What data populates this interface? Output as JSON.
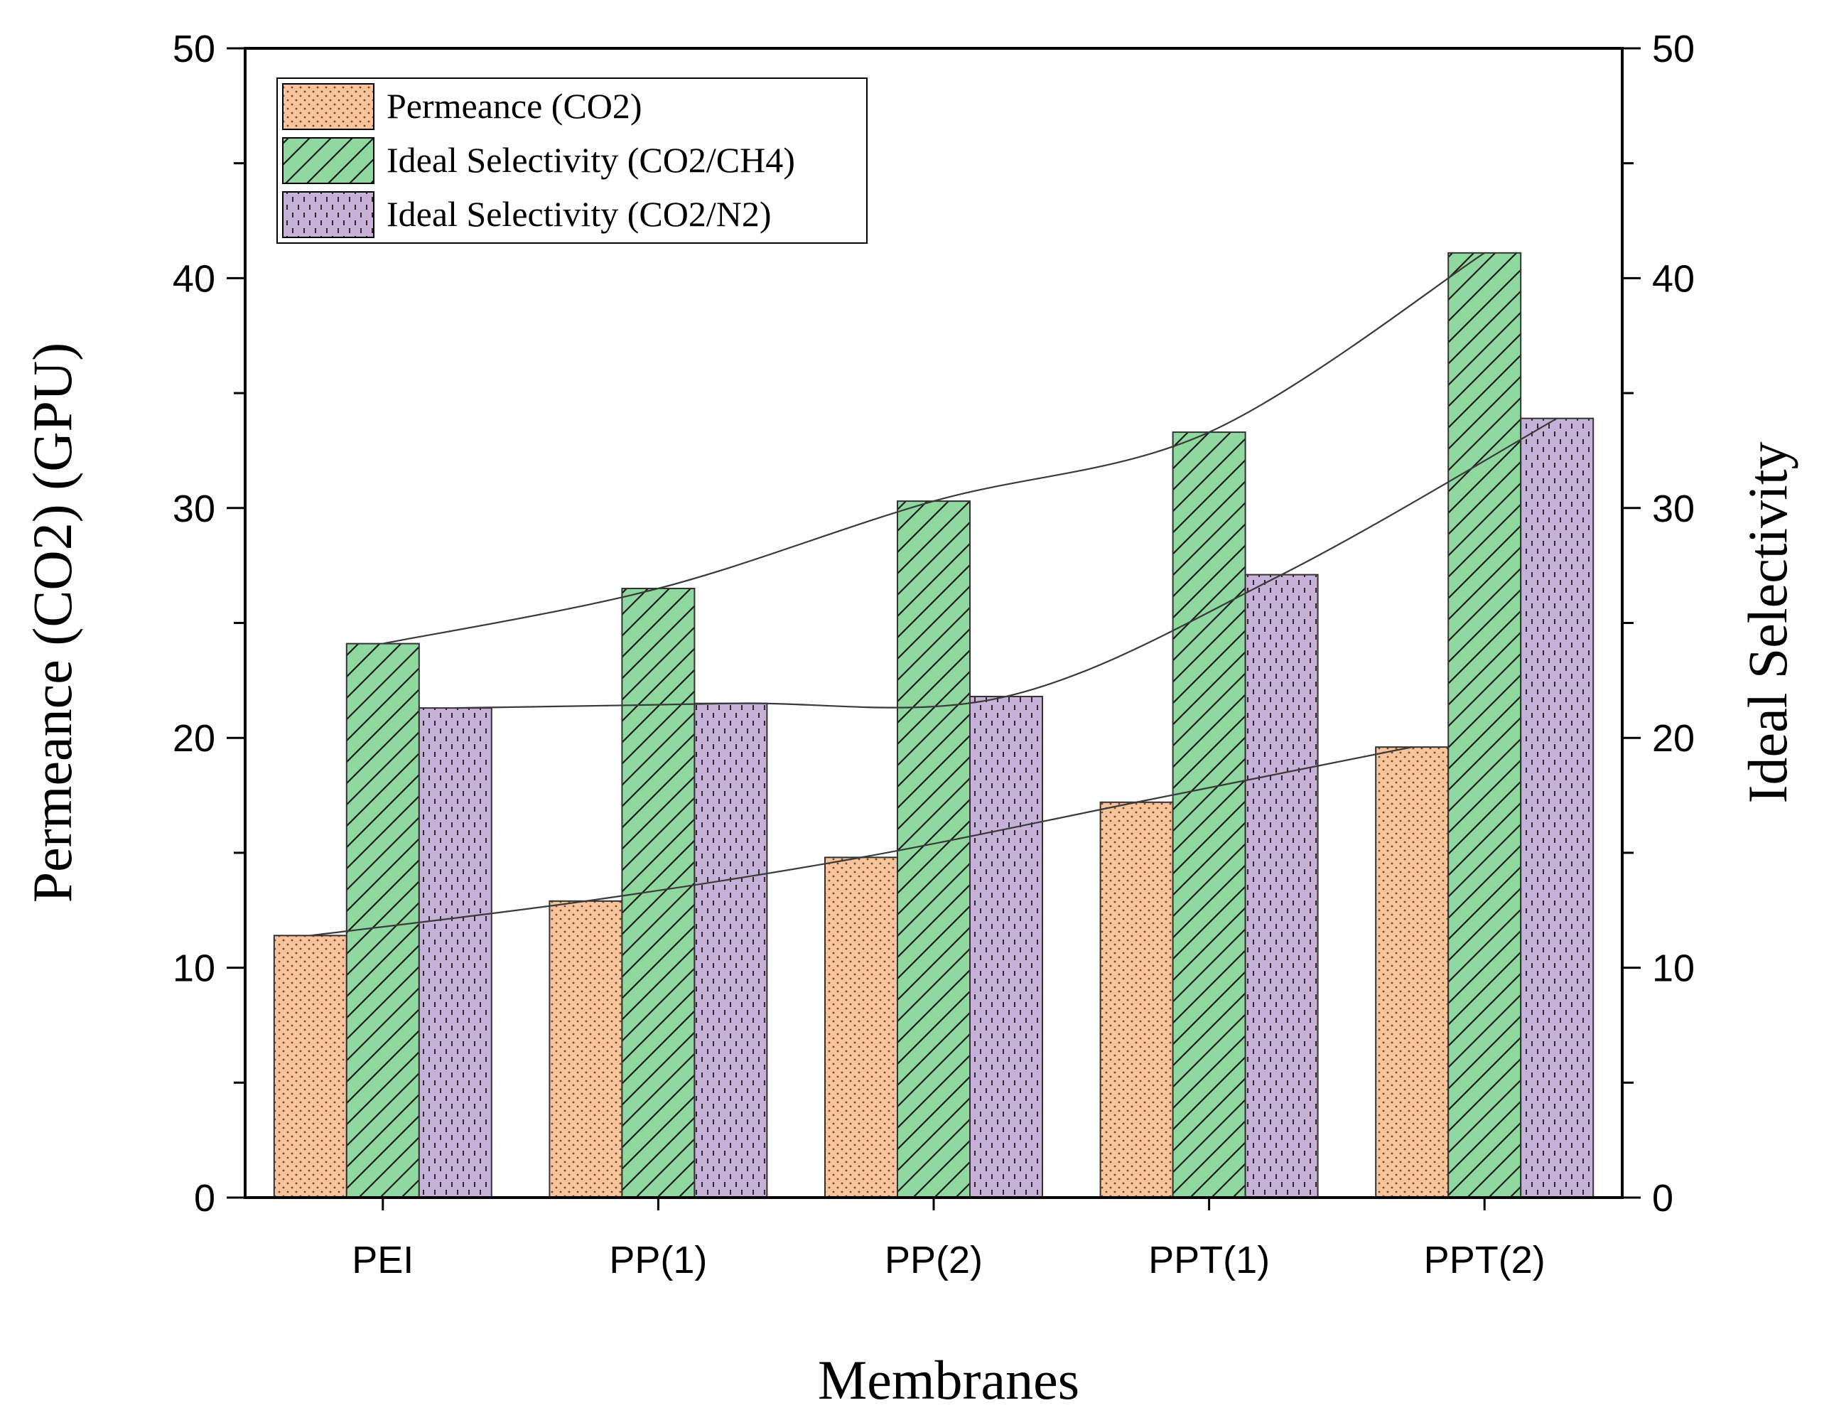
{
  "chart_data": {
    "type": "bar",
    "categories": [
      "PEI",
      "PP(1)",
      "PP(2)",
      "PPT(1)",
      "PPT(2)"
    ],
    "series": [
      {
        "name": "Permeance (CO2)",
        "axis": "left",
        "values": [
          11.4,
          12.9,
          14.8,
          17.2,
          19.6
        ],
        "color": "#f9c49c",
        "pattern": "dots"
      },
      {
        "name": "Ideal Selectivity (CO2/CH4)",
        "axis": "right",
        "values": [
          24.1,
          26.5,
          30.3,
          33.3,
          41.1
        ],
        "color": "#8fd9a0",
        "pattern": "diagonal"
      },
      {
        "name": "Ideal Selectivity (CO2/N2)",
        "axis": "right",
        "values": [
          21.3,
          21.5,
          21.8,
          27.1,
          33.9
        ],
        "color": "#c8b1d8",
        "pattern": "dashes"
      }
    ],
    "xlabel": "Membranes",
    "ylabel_left": "Permeance (CO2) (GPU)",
    "ylabel_right": "Ideal Selectivity",
    "ylim_left": [
      0,
      50
    ],
    "ylim_right": [
      0,
      50
    ],
    "yticks": [
      "0",
      "10",
      "20",
      "30",
      "40",
      "50"
    ],
    "grid": false,
    "legend_position": "top-left",
    "trend_lines": true
  }
}
